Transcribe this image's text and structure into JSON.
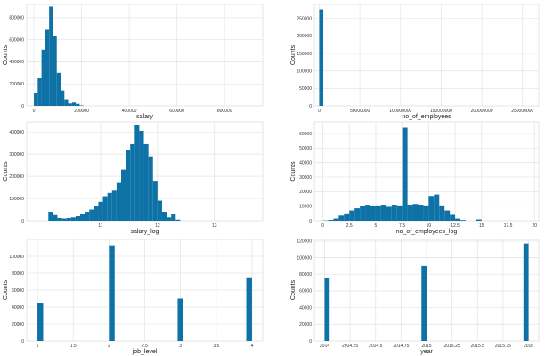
{
  "colors": {
    "bar": "#0e72a6",
    "grid": "#e6e6e6"
  },
  "chart_data": [
    {
      "type": "bar",
      "id": "salary",
      "xlabel": "salary",
      "ylabel": "Counts",
      "xlim": [
        -30000,
        960000
      ],
      "ylim": [
        0,
        920000
      ],
      "xticks": [
        0,
        200000,
        400000,
        600000,
        800000
      ],
      "yticks": [
        0,
        200000,
        400000,
        600000,
        800000
      ],
      "bin_width": 16000,
      "bins": [
        {
          "x": 0,
          "v": 120000
        },
        {
          "x": 16000,
          "v": 250000
        },
        {
          "x": 32000,
          "v": 510000
        },
        {
          "x": 48000,
          "v": 690000
        },
        {
          "x": 64000,
          "v": 900000
        },
        {
          "x": 80000,
          "v": 630000
        },
        {
          "x": 96000,
          "v": 300000
        },
        {
          "x": 112000,
          "v": 140000
        },
        {
          "x": 128000,
          "v": 60000
        },
        {
          "x": 144000,
          "v": 22000
        },
        {
          "x": 160000,
          "v": 30000
        },
        {
          "x": 176000,
          "v": 18000
        },
        {
          "x": 192000,
          "v": 4000
        }
      ]
    },
    {
      "type": "bar",
      "id": "no_of_employees",
      "xlabel": "no_of_employees",
      "ylabel": "Counts",
      "xlim": [
        -6000000,
        270000000
      ],
      "ylim": [
        0,
        290000
      ],
      "xticks": [
        0,
        50000000,
        100000000,
        150000000,
        200000000,
        250000000
      ],
      "yticks": [
        0,
        50000,
        100000,
        150000,
        200000,
        250000
      ],
      "bin_width": 5000000,
      "bins": [
        {
          "x": 0,
          "v": 276000
        }
      ]
    },
    {
      "type": "bar",
      "id": "salary_log",
      "xlabel": "salary_log",
      "ylabel": "Counts",
      "xlim": [
        9.7,
        13.85
      ],
      "ylim": [
        0,
        445000
      ],
      "xticks": [
        11,
        12,
        13
      ],
      "yticks": [
        0,
        100000,
        200000,
        300000,
        400000
      ],
      "bin_width": 0.08,
      "bins": [
        {
          "x": 10.08,
          "v": 40000
        },
        {
          "x": 10.16,
          "v": 25000
        },
        {
          "x": 10.24,
          "v": 12000
        },
        {
          "x": 10.32,
          "v": 10000
        },
        {
          "x": 10.4,
          "v": 12000
        },
        {
          "x": 10.48,
          "v": 15000
        },
        {
          "x": 10.56,
          "v": 20000
        },
        {
          "x": 10.64,
          "v": 28000
        },
        {
          "x": 10.72,
          "v": 40000
        },
        {
          "x": 10.8,
          "v": 50000
        },
        {
          "x": 10.88,
          "v": 65000
        },
        {
          "x": 10.96,
          "v": 85000
        },
        {
          "x": 11.04,
          "v": 110000
        },
        {
          "x": 11.12,
          "v": 125000
        },
        {
          "x": 11.2,
          "v": 135000
        },
        {
          "x": 11.28,
          "v": 170000
        },
        {
          "x": 11.36,
          "v": 230000
        },
        {
          "x": 11.44,
          "v": 320000
        },
        {
          "x": 11.52,
          "v": 345000
        },
        {
          "x": 11.6,
          "v": 430000
        },
        {
          "x": 11.68,
          "v": 405000
        },
        {
          "x": 11.76,
          "v": 345000
        },
        {
          "x": 11.84,
          "v": 290000
        },
        {
          "x": 11.92,
          "v": 180000
        },
        {
          "x": 12.0,
          "v": 90000
        },
        {
          "x": 12.08,
          "v": 40000
        },
        {
          "x": 12.16,
          "v": 15000
        },
        {
          "x": 12.24,
          "v": 28000
        },
        {
          "x": 12.32,
          "v": 5000
        }
      ]
    },
    {
      "type": "bar",
      "id": "no_of_employees_log",
      "xlabel": "no_of_employees_log",
      "ylabel": "Counts",
      "xlim": [
        -0.8,
        20.4
      ],
      "ylim": [
        0,
        68000
      ],
      "xticks": [
        0.0,
        2.5,
        5.0,
        7.5,
        10.0,
        12.5,
        15.0,
        17.5,
        20.0
      ],
      "yticks": [
        0,
        10000,
        20000,
        30000,
        40000,
        50000,
        60000
      ],
      "bin_width": 0.5,
      "bins": [
        {
          "x": 0.0,
          "v": 200
        },
        {
          "x": 0.5,
          "v": 600
        },
        {
          "x": 1.0,
          "v": 1500
        },
        {
          "x": 1.5,
          "v": 3500
        },
        {
          "x": 2.0,
          "v": 5000
        },
        {
          "x": 2.5,
          "v": 7000
        },
        {
          "x": 3.0,
          "v": 8500
        },
        {
          "x": 3.5,
          "v": 10000
        },
        {
          "x": 4.0,
          "v": 11000
        },
        {
          "x": 4.5,
          "v": 10000
        },
        {
          "x": 5.0,
          "v": 10500
        },
        {
          "x": 5.5,
          "v": 11000
        },
        {
          "x": 6.0,
          "v": 9500
        },
        {
          "x": 6.5,
          "v": 11000
        },
        {
          "x": 7.0,
          "v": 10500
        },
        {
          "x": 7.5,
          "v": 64000
        },
        {
          "x": 8.0,
          "v": 11000
        },
        {
          "x": 8.5,
          "v": 11500
        },
        {
          "x": 9.0,
          "v": 11000
        },
        {
          "x": 9.5,
          "v": 10500
        },
        {
          "x": 10.0,
          "v": 17000
        },
        {
          "x": 10.5,
          "v": 18000
        },
        {
          "x": 11.0,
          "v": 10500
        },
        {
          "x": 11.5,
          "v": 7000
        },
        {
          "x": 12.0,
          "v": 4000
        },
        {
          "x": 12.5,
          "v": 1500
        },
        {
          "x": 13.0,
          "v": 500
        },
        {
          "x": 14.5,
          "v": 900
        }
      ]
    },
    {
      "type": "bar",
      "id": "job_level",
      "xlabel": "job_level",
      "ylabel": "Counts",
      "xlim": [
        0.85,
        4.15
      ],
      "ylim": [
        0,
        120000
      ],
      "xticks": [
        1.0,
        1.5,
        2.0,
        2.5,
        3.0,
        3.5,
        4.0
      ],
      "yticks": [
        0,
        20000,
        40000,
        60000,
        80000,
        100000
      ],
      "bin_width": 0.08,
      "bins": [
        {
          "x": 1.0,
          "v": 45000
        },
        {
          "x": 2.0,
          "v": 113000
        },
        {
          "x": 2.96,
          "v": 50000
        },
        {
          "x": 3.92,
          "v": 75000
        }
      ]
    },
    {
      "type": "bar",
      "id": "year",
      "xlabel": "year",
      "ylabel": "Counts",
      "xlim": [
        2013.9,
        2016.1
      ],
      "ylim": [
        0,
        122000
      ],
      "xticks": [
        2014.0,
        2014.25,
        2014.5,
        2014.75,
        2015.0,
        2015.25,
        2015.5,
        2015.75,
        2016.0
      ],
      "yticks": [
        0,
        20000,
        40000,
        60000,
        80000,
        100000,
        120000
      ],
      "bin_width": 0.05,
      "bins": [
        {
          "x": 2014.0,
          "v": 76000
        },
        {
          "x": 2014.95,
          "v": 90000
        },
        {
          "x": 2015.95,
          "v": 117000
        }
      ]
    }
  ]
}
